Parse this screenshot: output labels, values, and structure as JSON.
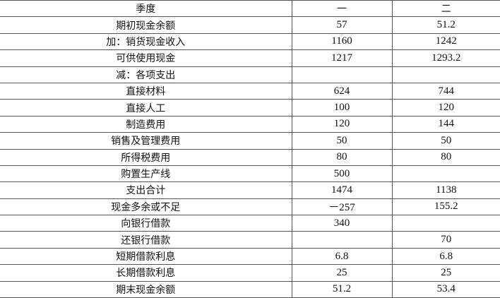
{
  "header": {
    "label": "季度",
    "q1": "一",
    "q2": "二"
  },
  "rows": [
    {
      "label": "期初现金余额",
      "q1": "57",
      "q2": "51.2"
    },
    {
      "label": "加：销货现金收入",
      "q1": "1160",
      "q2": "1242"
    },
    {
      "label": "可供使用现金",
      "q1": "1217",
      "q2": "1293.2"
    },
    {
      "label": "减：各项支出",
      "q1": "",
      "q2": ""
    },
    {
      "label": "直接材料",
      "q1": "624",
      "q2": "744"
    },
    {
      "label": "直接人工",
      "q1": "100",
      "q2": "120"
    },
    {
      "label": "制造费用",
      "q1": "120",
      "q2": "144"
    },
    {
      "label": "销售及管理费用",
      "q1": "50",
      "q2": "50"
    },
    {
      "label": "所得税费用",
      "q1": "80",
      "q2": "80"
    },
    {
      "label": "购置生产线",
      "q1": "500",
      "q2": ""
    },
    {
      "label": "支出合计",
      "q1": "1474",
      "q2": "1138"
    },
    {
      "label": "现金多余或不足",
      "q1": "－257",
      "q2": "155.2"
    },
    {
      "label": "向银行借款",
      "q1": "340",
      "q2": ""
    },
    {
      "label": "还银行借款",
      "q1": "",
      "q2": "70"
    },
    {
      "label": "短期借款利息",
      "q1": "6.8",
      "q2": "6.8"
    },
    {
      "label": "长期借款利息",
      "q1": "25",
      "q2": "25"
    },
    {
      "label": "期末现金余额",
      "q1": "51.2",
      "q2": "53.4"
    }
  ]
}
